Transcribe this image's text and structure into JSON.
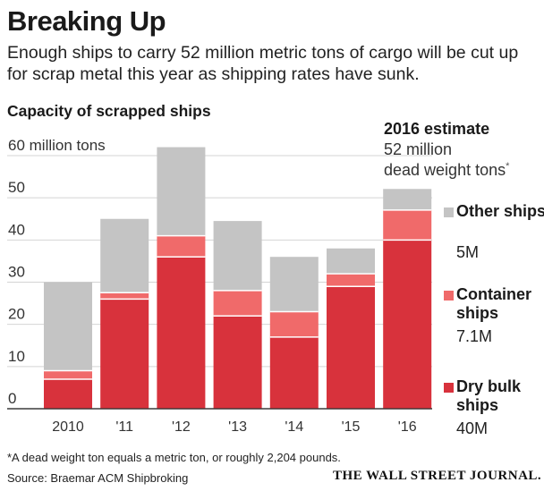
{
  "header": {
    "title": "Breaking Up",
    "subtitle": "Enough ships to carry 52 million metric tons of cargo will be cut up for scrap metal this year as shipping rates have sunk.",
    "section_title": "Capacity of scrapped ships"
  },
  "estimate": {
    "title": "2016 estimate",
    "line1": "52 million",
    "line2": "dead weight tons",
    "marker": "*"
  },
  "legend": [
    {
      "name": "Other ships",
      "value": "5M",
      "color": "#c4c4c4"
    },
    {
      "name": "Container ships",
      "value": "7.1M",
      "color": "#f06a6a"
    },
    {
      "name": "Dry bulk ships",
      "value": "40M",
      "color": "#d8323c"
    }
  ],
  "footer": {
    "footnote": "*A dead weight ton equals a metric ton, or roughly 2,204 pounds.",
    "source": "Source: Braemar ACM Shipbroking",
    "brand": "THE WALL STREET JOURNAL."
  },
  "chart_data": {
    "type": "bar",
    "stacked": true,
    "title": "Capacity of scrapped ships",
    "xlabel": "",
    "ylabel": "million tons",
    "ylim": [
      0,
      60
    ],
    "yticks": [
      0,
      10,
      20,
      30,
      40,
      50,
      60
    ],
    "ytick_labels": [
      "0",
      "10",
      "20",
      "30",
      "40",
      "50",
      "60 million tons"
    ],
    "categories": [
      "2010",
      "'11",
      "'12",
      "'13",
      "'14",
      "'15",
      "'16"
    ],
    "series": [
      {
        "name": "Dry bulk ships",
        "color": "#d8323c",
        "values": [
          7,
          26,
          36,
          22,
          17,
          29,
          40
        ]
      },
      {
        "name": "Container ships",
        "color": "#f06a6a",
        "values": [
          2,
          1.5,
          5,
          6,
          6,
          3,
          7.1
        ]
      },
      {
        "name": "Other ships",
        "color": "#c4c4c4",
        "values": [
          21,
          17.5,
          21,
          16.5,
          13,
          6,
          5
        ]
      }
    ],
    "grid": true,
    "legend_position": "right"
  }
}
